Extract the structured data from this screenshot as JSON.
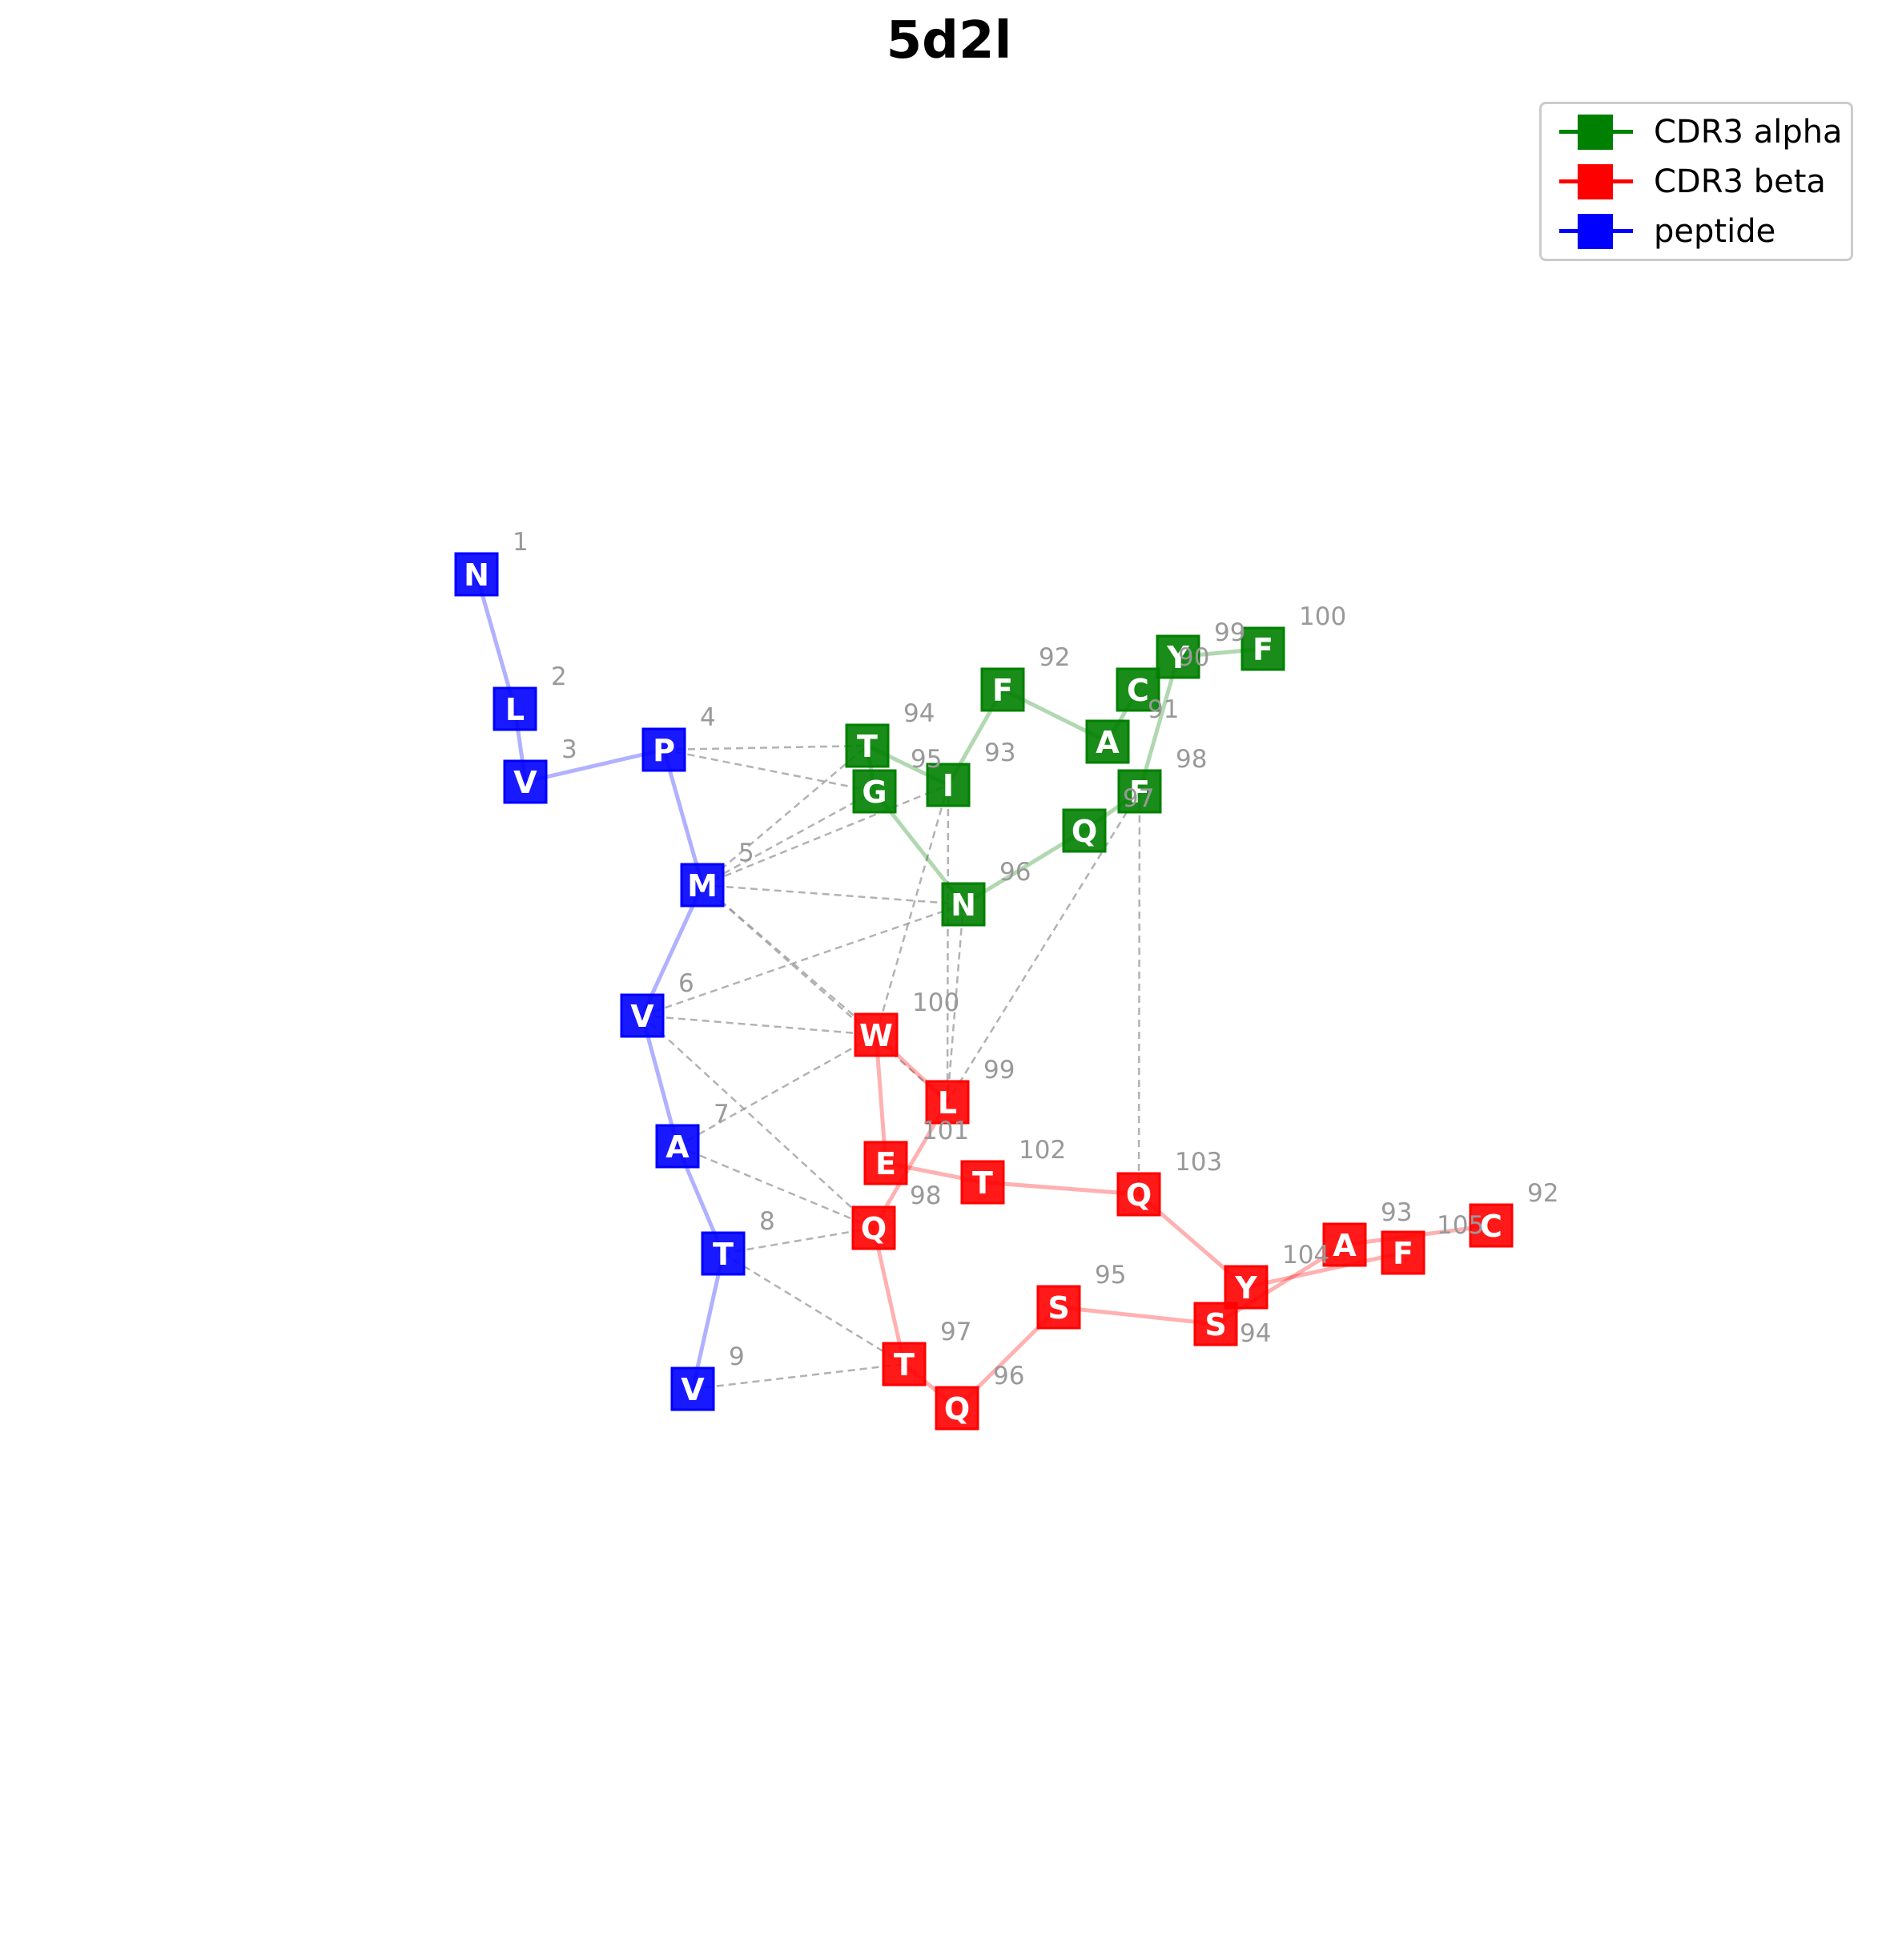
{
  "title": "5d2l",
  "colors": {
    "cdr3_alpha": "#008000",
    "cdr3_beta": "#ff0000",
    "peptide": "#0000ff",
    "contact_edge": "#999999",
    "index_label": "#999999"
  },
  "legend": {
    "items": [
      {
        "label": "CDR3 alpha",
        "color": "#008000"
      },
      {
        "label": "CDR3 beta",
        "color": "#ff0000"
      },
      {
        "label": "peptide",
        "color": "#0000ff"
      }
    ]
  },
  "graph": {
    "nodes": [
      {
        "id": "p1",
        "chain": "peptide",
        "residue": "N",
        "index": "1"
      },
      {
        "id": "p2",
        "chain": "peptide",
        "residue": "L",
        "index": "2"
      },
      {
        "id": "p3",
        "chain": "peptide",
        "residue": "V",
        "index": "3"
      },
      {
        "id": "p4",
        "chain": "peptide",
        "residue": "P",
        "index": "4"
      },
      {
        "id": "p5",
        "chain": "peptide",
        "residue": "M",
        "index": "5"
      },
      {
        "id": "p6",
        "chain": "peptide",
        "residue": "V",
        "index": "6"
      },
      {
        "id": "p7",
        "chain": "peptide",
        "residue": "A",
        "index": "7"
      },
      {
        "id": "p8",
        "chain": "peptide",
        "residue": "T",
        "index": "8"
      },
      {
        "id": "p9",
        "chain": "peptide",
        "residue": "V",
        "index": "9"
      },
      {
        "id": "a90",
        "chain": "cdr3_alpha",
        "residue": "C",
        "index": "90"
      },
      {
        "id": "a91",
        "chain": "cdr3_alpha",
        "residue": "A",
        "index": "91"
      },
      {
        "id": "a92",
        "chain": "cdr3_alpha",
        "residue": "F",
        "index": "92"
      },
      {
        "id": "a93",
        "chain": "cdr3_alpha",
        "residue": "I",
        "index": "93"
      },
      {
        "id": "a94",
        "chain": "cdr3_alpha",
        "residue": "T",
        "index": "94"
      },
      {
        "id": "a95",
        "chain": "cdr3_alpha",
        "residue": "G",
        "index": "95"
      },
      {
        "id": "a96",
        "chain": "cdr3_alpha",
        "residue": "N",
        "index": "96"
      },
      {
        "id": "a97",
        "chain": "cdr3_alpha",
        "residue": "Q",
        "index": "97"
      },
      {
        "id": "a98",
        "chain": "cdr3_alpha",
        "residue": "F",
        "index": "98"
      },
      {
        "id": "a99",
        "chain": "cdr3_alpha",
        "residue": "Y",
        "index": "99"
      },
      {
        "id": "a100",
        "chain": "cdr3_alpha",
        "residue": "F",
        "index": "100"
      },
      {
        "id": "b92",
        "chain": "cdr3_beta",
        "residue": "C",
        "index": "92"
      },
      {
        "id": "b93",
        "chain": "cdr3_beta",
        "residue": "A",
        "index": "93"
      },
      {
        "id": "b94",
        "chain": "cdr3_beta",
        "residue": "S",
        "index": "94"
      },
      {
        "id": "b95",
        "chain": "cdr3_beta",
        "residue": "S",
        "index": "95"
      },
      {
        "id": "b96",
        "chain": "cdr3_beta",
        "residue": "Q",
        "index": "96"
      },
      {
        "id": "b97",
        "chain": "cdr3_beta",
        "residue": "T",
        "index": "97"
      },
      {
        "id": "b98",
        "chain": "cdr3_beta",
        "residue": "Q",
        "index": "98"
      },
      {
        "id": "b99",
        "chain": "cdr3_beta",
        "residue": "L",
        "index": "99"
      },
      {
        "id": "b100",
        "chain": "cdr3_beta",
        "residue": "W",
        "index": "100"
      },
      {
        "id": "b101",
        "chain": "cdr3_beta",
        "residue": "E",
        "index": "101"
      },
      {
        "id": "b102",
        "chain": "cdr3_beta",
        "residue": "T",
        "index": "102"
      },
      {
        "id": "b103",
        "chain": "cdr3_beta",
        "residue": "Q",
        "index": "103"
      },
      {
        "id": "b104",
        "chain": "cdr3_beta",
        "residue": "Y",
        "index": "104"
      },
      {
        "id": "b105",
        "chain": "cdr3_beta",
        "residue": "F",
        "index": "105"
      }
    ],
    "backbone_edges": [
      [
        "p1",
        "p2"
      ],
      [
        "p2",
        "p3"
      ],
      [
        "p3",
        "p4"
      ],
      [
        "p4",
        "p5"
      ],
      [
        "p5",
        "p6"
      ],
      [
        "p6",
        "p7"
      ],
      [
        "p7",
        "p8"
      ],
      [
        "p8",
        "p9"
      ],
      [
        "a90",
        "a91"
      ],
      [
        "a91",
        "a92"
      ],
      [
        "a92",
        "a93"
      ],
      [
        "a93",
        "a94"
      ],
      [
        "a94",
        "a95"
      ],
      [
        "a95",
        "a96"
      ],
      [
        "a96",
        "a97"
      ],
      [
        "a97",
        "a98"
      ],
      [
        "a98",
        "a99"
      ],
      [
        "a99",
        "a100"
      ],
      [
        "b92",
        "b93"
      ],
      [
        "b93",
        "b94"
      ],
      [
        "b94",
        "b95"
      ],
      [
        "b95",
        "b96"
      ],
      [
        "b96",
        "b97"
      ],
      [
        "b97",
        "b98"
      ],
      [
        "b98",
        "b99"
      ],
      [
        "b99",
        "b100"
      ],
      [
        "b100",
        "b101"
      ],
      [
        "b101",
        "b102"
      ],
      [
        "b102",
        "b103"
      ],
      [
        "b103",
        "b104"
      ],
      [
        "b104",
        "b105"
      ]
    ],
    "contact_edges": [
      [
        "p4",
        "a94"
      ],
      [
        "p4",
        "a95"
      ],
      [
        "p5",
        "a94"
      ],
      [
        "p5",
        "a95"
      ],
      [
        "p5",
        "a93"
      ],
      [
        "p5",
        "a96"
      ],
      [
        "p5",
        "b100"
      ],
      [
        "p5",
        "b99"
      ],
      [
        "p6",
        "a96"
      ],
      [
        "p6",
        "b100"
      ],
      [
        "p6",
        "b98"
      ],
      [
        "p7",
        "b100"
      ],
      [
        "p7",
        "b98"
      ],
      [
        "p8",
        "b98"
      ],
      [
        "p8",
        "b97"
      ],
      [
        "p9",
        "b97"
      ],
      [
        "a93",
        "b100"
      ],
      [
        "a93",
        "b99"
      ],
      [
        "a96",
        "b99"
      ],
      [
        "a98",
        "b99"
      ],
      [
        "a98",
        "b103"
      ]
    ]
  }
}
